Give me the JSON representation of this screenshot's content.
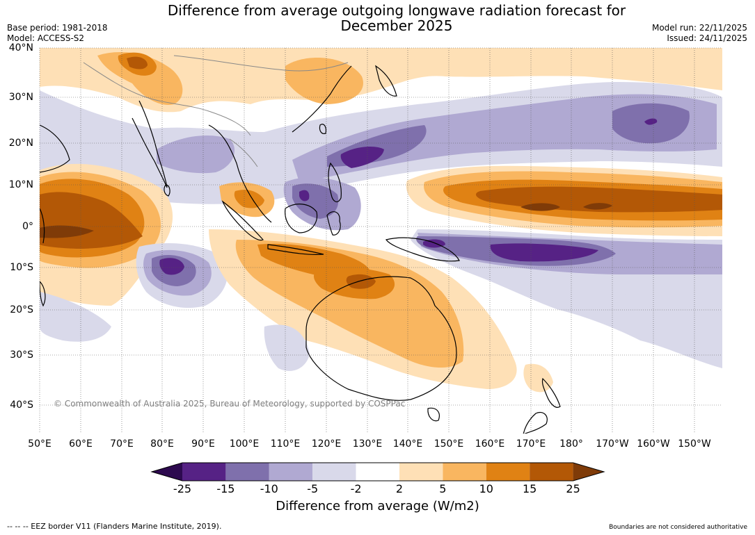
{
  "title_line1": "Difference from average outgoing longwave radiation forecast for",
  "title_line2": "December 2025",
  "base_period": "Base period: 1981-2018",
  "model": "Model: ACCESS-S2",
  "model_run": "Model run: 22/11/2025",
  "issued": "Issued: 24/11/2025",
  "lat_labels": [
    "40°N",
    "30°N",
    "20°N",
    "10°N",
    "0°",
    "10°S",
    "20°S",
    "30°S",
    "40°S"
  ],
  "lon_labels": [
    "50°E",
    "60°E",
    "70°E",
    "80°E",
    "90°E",
    "100°E",
    "110°E",
    "120°E",
    "130°E",
    "140°E",
    "150°E",
    "160°E",
    "170°E",
    "180°",
    "170°W",
    "160°W",
    "150°W"
  ],
  "copyright": "© Commonwealth of Australia 2025, Bureau of Meteorology, supported by COSPPac",
  "colorbar": {
    "ticks": [
      "-25",
      "-15",
      "-10",
      "-5",
      "-2",
      "2",
      "5",
      "10",
      "15",
      "25"
    ],
    "colors": [
      "#2d0a4f",
      "#562285",
      "#7f70ac",
      "#b0a9d2",
      "#d9d9ea",
      "#ffffff",
      "#fee0b6",
      "#f9b660",
      "#e08214",
      "#b35806",
      "#7f3b08"
    ],
    "label": "Difference from average (W/m2)"
  },
  "eez_note": "--  --  -- EEZ border V11 (Flanders Marine Institute, 2019).",
  "boundaries_note": "Boundaries are not considered authoritative"
}
